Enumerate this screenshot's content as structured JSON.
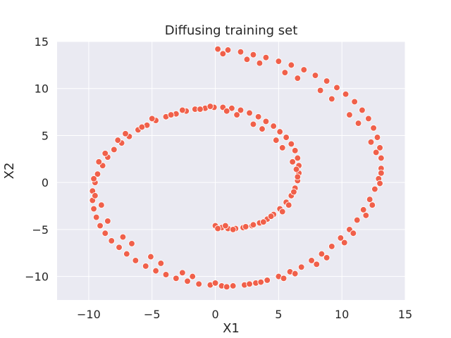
{
  "chart_data": {
    "type": "scatter",
    "title": "Diffusing training set",
    "xlabel": "X1",
    "ylabel": "X2",
    "xlim": [
      -12.5,
      15
    ],
    "ylim": [
      -12.5,
      15
    ],
    "xticks": [
      -10,
      -5,
      0,
      5,
      10,
      15
    ],
    "yticks": [
      -10,
      -5,
      0,
      5,
      10,
      15
    ],
    "xtick_labels": [
      "−10",
      "−5",
      "0",
      "5",
      "10",
      "15"
    ],
    "ytick_labels": [
      "−10",
      "−5",
      "0",
      "5",
      "10",
      "15"
    ],
    "grid": true,
    "legend": "none",
    "colors": {
      "background": "#eaeaf2",
      "marker": "#f0604a",
      "text": "#262626"
    },
    "series": [
      {
        "description_free": true,
        "x": [
          0.0,
          0.5,
          1.0,
          1.6,
          2.2,
          2.9,
          3.5,
          4.1,
          4.6,
          5.1,
          5.6,
          6.0,
          6.3,
          6.5,
          6.6,
          6.6,
          6.5,
          6.3,
          6.0,
          5.6,
          5.1,
          4.6,
          4.0,
          3.4,
          2.7,
          2.0,
          1.3,
          0.6,
          -0.1,
          -0.8,
          -1.6,
          -2.3,
          -3.1,
          -3.9,
          -4.7,
          -5.4,
          -6.1,
          -6.8,
          -7.4,
          -8.0,
          -8.5,
          -8.9,
          -9.3,
          -9.5,
          -9.7,
          -9.7,
          -9.6,
          -9.4,
          -9.1,
          -8.7,
          -8.2,
          -7.6,
          -7.0,
          -6.3,
          -5.5,
          -4.7,
          -3.9,
          -3.1,
          -2.2,
          -1.3,
          -0.4,
          0.5,
          1.4,
          2.3,
          3.2,
          4.1,
          5.0,
          5.9,
          6.8,
          7.6,
          8.4,
          9.2,
          9.9,
          10.6,
          11.2,
          11.7,
          12.2,
          12.6,
          12.9,
          13.1,
          13.1,
          13.0,
          12.8,
          12.5,
          12.1,
          11.6,
          11.0,
          10.3,
          9.6,
          8.8,
          7.9,
          7.0,
          6.0,
          5.0,
          4.0,
          3.0,
          2.0,
          1.0,
          0.2,
          0.2,
          0.8,
          1.4,
          2.4,
          3.0,
          3.8,
          4.4,
          5.3,
          5.8,
          6.2,
          6.5,
          6.4,
          6.1,
          5.3,
          4.8,
          3.7,
          3.0,
          1.7,
          0.9,
          -0.4,
          -1.2,
          -2.6,
          -3.5,
          -5.0,
          -5.8,
          -7.1,
          -7.7,
          -8.7,
          -9.2,
          -9.6,
          -9.5,
          -9.0,
          -8.5,
          -7.3,
          -6.6,
          -5.1,
          -4.3,
          -2.6,
          -1.8,
          0.0,
          0.9,
          2.7,
          3.6,
          5.4,
          6.3,
          8.0,
          8.8,
          10.2,
          10.9,
          11.9,
          12.4,
          13.0,
          13.1,
          12.7,
          12.3,
          11.3,
          10.6,
          9.2,
          8.3,
          6.5,
          5.5,
          3.5,
          2.5,
          0.6
        ],
        "y": [
          -4.6,
          -4.8,
          -4.9,
          -4.9,
          -4.8,
          -4.6,
          -4.3,
          -3.9,
          -3.4,
          -2.8,
          -2.1,
          -1.4,
          -0.6,
          0.2,
          1.0,
          1.8,
          2.6,
          3.4,
          4.1,
          4.8,
          5.4,
          6.0,
          6.5,
          7.0,
          7.4,
          7.7,
          7.9,
          8.0,
          8.0,
          7.9,
          7.8,
          7.6,
          7.3,
          7.0,
          6.6,
          6.1,
          5.6,
          4.9,
          4.2,
          3.5,
          2.7,
          1.8,
          0.9,
          0.0,
          -0.9,
          -1.9,
          -2.8,
          -3.7,
          -4.6,
          -5.4,
          -6.2,
          -6.9,
          -7.6,
          -8.3,
          -8.9,
          -9.4,
          -9.8,
          -10.2,
          -10.5,
          -10.8,
          -10.9,
          -11.0,
          -11.0,
          -10.9,
          -10.7,
          -10.4,
          -10.0,
          -9.5,
          -9.0,
          -8.3,
          -7.6,
          -6.8,
          -5.9,
          -5.0,
          -4.0,
          -2.9,
          -1.8,
          -0.7,
          0.4,
          1.5,
          2.6,
          3.7,
          4.8,
          5.8,
          6.8,
          7.7,
          8.6,
          9.4,
          10.1,
          10.8,
          11.4,
          12.0,
          12.5,
          12.9,
          13.3,
          13.6,
          13.9,
          14.1,
          14.2,
          -4.9,
          -4.6,
          -5.0,
          -4.7,
          -4.5,
          -4.2,
          -3.6,
          -3.1,
          -2.4,
          -1.0,
          0.6,
          1.4,
          2.2,
          3.7,
          4.5,
          5.7,
          6.2,
          7.2,
          7.6,
          8.1,
          7.8,
          7.7,
          7.2,
          6.8,
          5.9,
          5.2,
          4.5,
          3.1,
          2.2,
          0.4,
          -1.4,
          -2.4,
          -4.1,
          -5.8,
          -6.5,
          -7.9,
          -8.6,
          -9.6,
          -10.0,
          -10.7,
          -11.1,
          -10.8,
          -10.6,
          -10.2,
          -9.7,
          -8.7,
          -8.0,
          -6.4,
          -5.4,
          -3.5,
          -2.4,
          -0.1,
          1.0,
          3.2,
          4.3,
          6.3,
          7.2,
          8.9,
          9.8,
          11.1,
          11.7,
          12.7,
          13.1,
          13.7
        ]
      }
    ]
  }
}
